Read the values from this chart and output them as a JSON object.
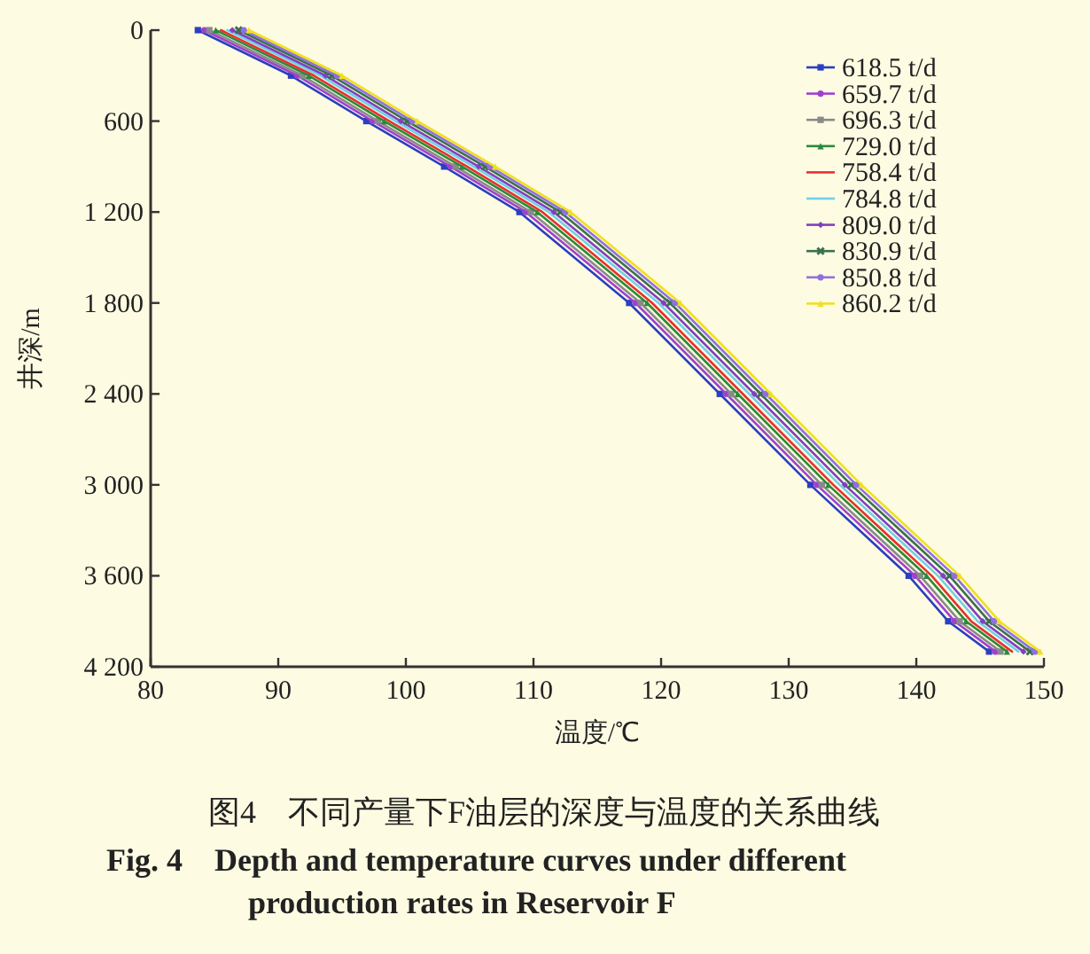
{
  "chart_data": {
    "type": "line",
    "title": "图4　不同产量下F油层的深度与温度的关系曲线",
    "subtitle": "Fig. 4　Depth and temperature curves under different production rates in Reservoir F",
    "xlabel": "温度/℃",
    "ylabel": "井深/m",
    "xlim": [
      80,
      150
    ],
    "xticks": [
      80,
      90,
      100,
      110,
      120,
      130,
      140,
      150
    ],
    "ylim": [
      4200,
      0
    ],
    "yticks": [
      0,
      600,
      {
        "value": 1200,
        "label": "1 200"
      },
      {
        "value": 1800,
        "label": "1 800"
      },
      {
        "value": 2400,
        "label": "2 400"
      },
      {
        "value": 3000,
        "label": "3 000"
      },
      {
        "value": 3600,
        "label": "3 600"
      },
      {
        "value": 4200,
        "label": "4 200"
      }
    ],
    "legend": "top right",
    "grid": false,
    "line_style": "solid",
    "series": [
      {
        "name": "618.5 t/d",
        "color": "#2b3fc0",
        "marker": "square",
        "x": [
          83.7,
          91.0,
          96.9,
          103.0,
          108.9,
          117.5,
          124.6,
          131.7,
          139.4,
          142.5,
          145.7
        ],
        "values": [
          0,
          300,
          600,
          900,
          1200,
          1800,
          2400,
          3000,
          3600,
          3900,
          4100
        ]
      },
      {
        "name": "659.7 t/d",
        "color": "#a040d0",
        "marker": "circle",
        "x": [
          84.2,
          91.5,
          97.4,
          103.5,
          109.4,
          118.0,
          125.1,
          132.2,
          139.9,
          143.0,
          146.2
        ],
        "values": [
          0,
          300,
          600,
          900,
          1200,
          1800,
          2400,
          3000,
          3600,
          3900,
          4100
        ]
      },
      {
        "name": "696.3 t/d",
        "color": "#8a8a8a",
        "marker": "square",
        "x": [
          84.6,
          91.9,
          97.8,
          103.9,
          109.8,
          118.4,
          125.5,
          132.6,
          140.3,
          143.4,
          146.6
        ],
        "values": [
          0,
          300,
          600,
          900,
          1200,
          1800,
          2400,
          3000,
          3600,
          3900,
          4100
        ]
      },
      {
        "name": "729.0 t/d",
        "color": "#2a8a3a",
        "marker": "triangle",
        "x": [
          85.1,
          92.4,
          98.3,
          104.4,
          110.3,
          118.9,
          126.0,
          133.1,
          140.8,
          143.9,
          147.1
        ],
        "values": [
          0,
          300,
          600,
          900,
          1200,
          1800,
          2400,
          3000,
          3600,
          3900,
          4100
        ]
      },
      {
        "name": "758.4 t/d",
        "color": "#e83030",
        "marker": "none",
        "x": [
          85.5,
          92.8,
          98.7,
          104.8,
          110.7,
          119.3,
          126.4,
          133.5,
          141.2,
          144.3,
          147.5
        ],
        "values": [
          0,
          300,
          600,
          900,
          1200,
          1800,
          2400,
          3000,
          3600,
          3900,
          4100
        ]
      },
      {
        "name": "784.8 t/d",
        "color": "#70d0e8",
        "marker": "none",
        "x": [
          86.0,
          93.3,
          99.2,
          105.3,
          111.2,
          119.8,
          126.9,
          134.0,
          141.7,
          144.8,
          148.0
        ],
        "values": [
          0,
          300,
          600,
          900,
          1200,
          1800,
          2400,
          3000,
          3600,
          3900,
          4100
        ]
      },
      {
        "name": "809.0 t/d",
        "color": "#8040c0",
        "marker": "diamond",
        "x": [
          86.4,
          93.7,
          99.6,
          105.7,
          111.6,
          120.2,
          127.3,
          134.4,
          142.1,
          145.2,
          148.4
        ],
        "values": [
          0,
          300,
          600,
          900,
          1200,
          1800,
          2400,
          3000,
          3600,
          3900,
          4100
        ]
      },
      {
        "name": "830.9 t/d",
        "color": "#3a7050",
        "marker": "cross",
        "x": [
          86.9,
          94.2,
          100.1,
          106.2,
          112.1,
          120.7,
          127.8,
          134.9,
          142.6,
          145.7,
          148.9
        ],
        "values": [
          0,
          300,
          600,
          900,
          1200,
          1800,
          2400,
          3000,
          3600,
          3900,
          4100
        ]
      },
      {
        "name": "850.8 t/d",
        "color": "#9070e0",
        "marker": "circle",
        "x": [
          87.3,
          94.6,
          100.5,
          106.6,
          112.5,
          121.1,
          128.2,
          135.3,
          143.0,
          146.1,
          149.3
        ],
        "values": [
          0,
          300,
          600,
          900,
          1200,
          1800,
          2400,
          3000,
          3600,
          3900,
          4100
        ]
      },
      {
        "name": "860.2 t/d",
        "color": "#f0e020",
        "marker": "triangle",
        "x": [
          87.7,
          95.0,
          100.9,
          107.0,
          112.9,
          121.5,
          128.6,
          135.7,
          143.4,
          146.5,
          149.7
        ],
        "values": [
          0,
          300,
          600,
          900,
          1200,
          1800,
          2400,
          3000,
          3600,
          3900,
          4100
        ]
      }
    ]
  }
}
